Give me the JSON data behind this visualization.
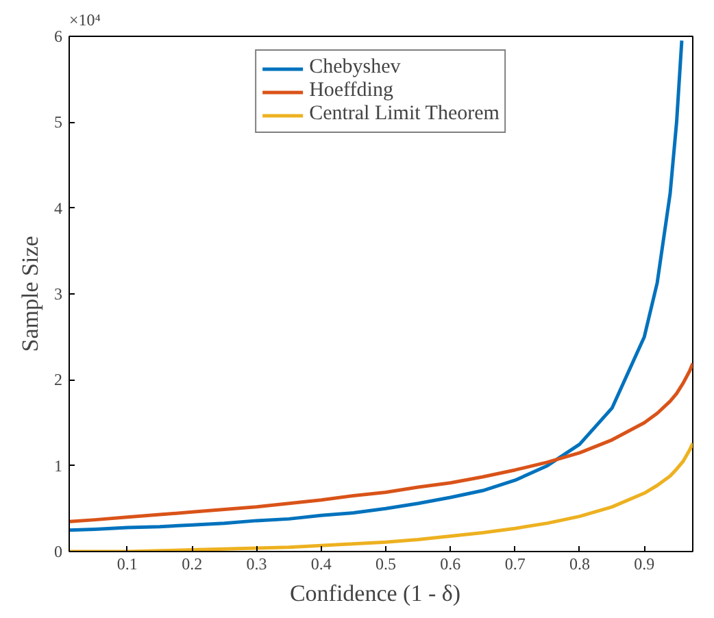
{
  "chart_data": {
    "type": "line",
    "xlabel": "Confidence (1  -  δ)",
    "ylabel": "Sample Size",
    "annotations": [
      "×10⁴"
    ],
    "xlim": [
      0.01,
      0.975
    ],
    "xticks": [
      0.1,
      0.2,
      0.3,
      0.4,
      0.5,
      0.6,
      0.7,
      0.8,
      0.9
    ],
    "ylim": [
      0,
      6
    ],
    "yticks": [
      0,
      1,
      2,
      3,
      4,
      5,
      6
    ],
    "grid": false,
    "legend": "top",
    "marker": "none",
    "line_style": "solid",
    "series": [
      {
        "name": "Chebyshev",
        "color": "#0072bd",
        "x": [
          0.01,
          0.05,
          0.1,
          0.15,
          0.2,
          0.25,
          0.3,
          0.35,
          0.4,
          0.45,
          0.5,
          0.55,
          0.6,
          0.65,
          0.7,
          0.75,
          0.8,
          0.85,
          0.9,
          0.92,
          0.94,
          0.95,
          0.958
        ],
        "values": [
          0.25,
          0.26,
          0.28,
          0.29,
          0.31,
          0.33,
          0.36,
          0.38,
          0.42,
          0.45,
          0.5,
          0.56,
          0.63,
          0.71,
          0.83,
          1.0,
          1.25,
          1.67,
          2.5,
          3.13,
          4.17,
          5.0,
          5.95
        ]
      },
      {
        "name": "Hoeffding",
        "color": "#d95319",
        "x": [
          0.01,
          0.05,
          0.1,
          0.15,
          0.2,
          0.25,
          0.3,
          0.35,
          0.4,
          0.45,
          0.5,
          0.55,
          0.6,
          0.65,
          0.7,
          0.75,
          0.8,
          0.85,
          0.9,
          0.92,
          0.94,
          0.95,
          0.96,
          0.97,
          0.975
        ],
        "values": [
          0.35,
          0.37,
          0.4,
          0.43,
          0.46,
          0.49,
          0.52,
          0.56,
          0.6,
          0.65,
          0.69,
          0.75,
          0.8,
          0.87,
          0.95,
          1.04,
          1.15,
          1.3,
          1.5,
          1.61,
          1.75,
          1.84,
          1.96,
          2.1,
          2.19
        ]
      },
      {
        "name": "Central Limit Theorem",
        "color": "#edb120",
        "x": [
          0.01,
          0.05,
          0.1,
          0.15,
          0.2,
          0.25,
          0.3,
          0.35,
          0.4,
          0.45,
          0.5,
          0.55,
          0.6,
          0.65,
          0.7,
          0.75,
          0.8,
          0.85,
          0.9,
          0.92,
          0.94,
          0.95,
          0.96,
          0.97,
          0.975
        ],
        "values": [
          0,
          0,
          0,
          0.01,
          0.02,
          0.03,
          0.04,
          0.05,
          0.07,
          0.09,
          0.11,
          0.14,
          0.18,
          0.22,
          0.27,
          0.33,
          0.41,
          0.52,
          0.68,
          0.77,
          0.88,
          0.96,
          1.05,
          1.18,
          1.26
        ]
      }
    ]
  }
}
